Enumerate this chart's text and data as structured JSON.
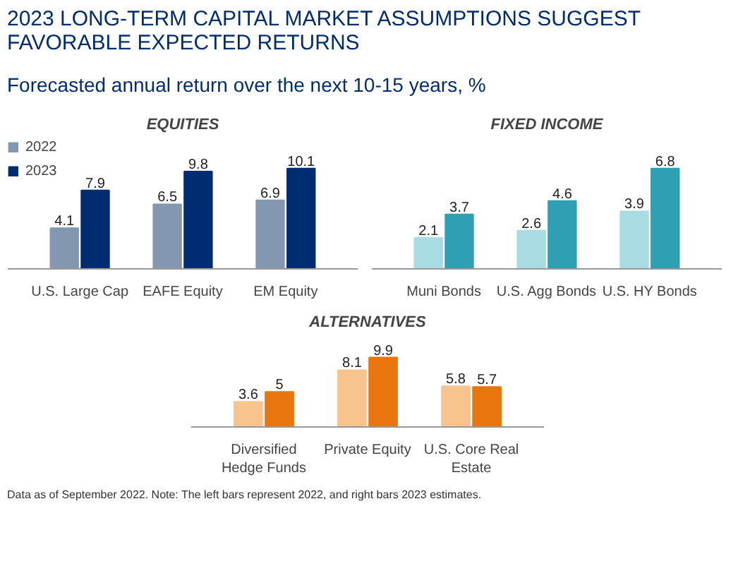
{
  "chart_data": [
    {
      "type": "bar",
      "title": "EQUITIES",
      "annotations": [
        "2023 LONG-TERM CAPITAL MARKET ASSUMPTIONS SUGGEST FAVORABLE EXPECTED RETURNS",
        "Forecasted annual return over the next 10-15 years, %"
      ],
      "categories": [
        "U.S. Large Cap",
        "EAFE Equity",
        "EM Equity"
      ],
      "series": [
        {
          "name": "2022",
          "color": "#8497b0",
          "values": [
            4.1,
            6.5,
            6.9
          ]
        },
        {
          "name": "2023",
          "color": "#002d72",
          "values": [
            7.9,
            9.8,
            10.1
          ]
        }
      ],
      "data_labels": true,
      "legend": "top left",
      "grid": false,
      "tick_labels": "x"
    },
    {
      "type": "bar",
      "title": "FIXED INCOME",
      "categories": [
        "Muni Bonds",
        "U.S. Agg Bonds",
        "U.S. HY Bonds"
      ],
      "series": [
        {
          "color": "#a9dbe3",
          "values": [
            2.1,
            2.6,
            3.9
          ]
        },
        {
          "color": "#2f9fb3",
          "values": [
            3.7,
            4.6,
            6.8
          ]
        }
      ],
      "data_labels": true,
      "grid": false,
      "tick_labels": "x"
    },
    {
      "type": "bar",
      "title": "ALTERNATIVES",
      "annotations": [
        "Data as of September 2022. Note: The left bars represent 2022, and right bars 2023 estimates."
      ],
      "categories": [
        "Diversified Hedge Funds",
        "Private Equity",
        "U.S. Core Real Estate"
      ],
      "series": [
        {
          "color": "#f7c48e",
          "values": [
            3.6,
            8.1,
            5.8
          ]
        },
        {
          "color": "#e8750e",
          "values": [
            5,
            9.9,
            5.7
          ]
        }
      ],
      "data_labels": true,
      "grid": false,
      "tick_labels": "x"
    }
  ]
}
